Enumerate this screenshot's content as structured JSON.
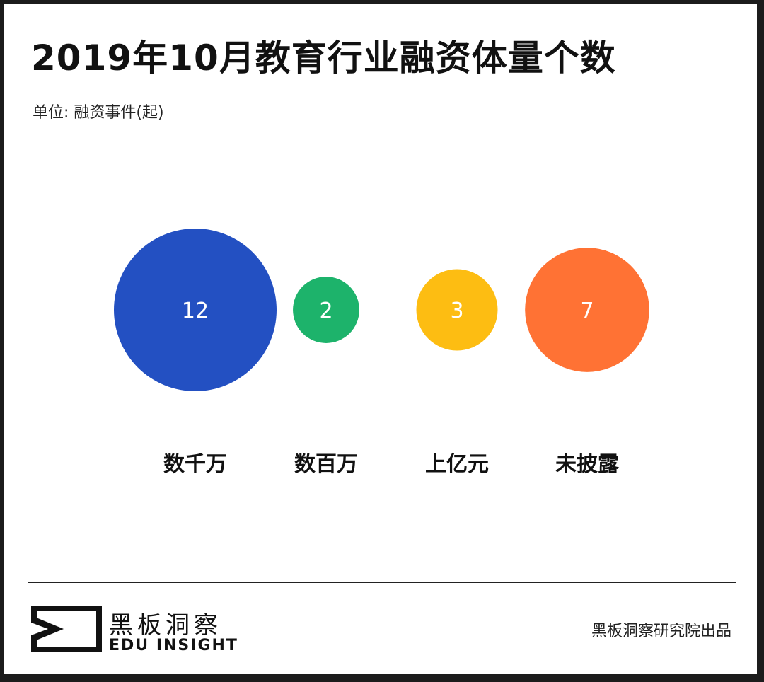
{
  "title": "2019年10月教育行业融资体量个数",
  "unit_label": "单位: 融资事件(起)",
  "chart_data": {
    "type": "bubble",
    "title": "2019年10月教育行业融资体量个数",
    "unit": "单位: 融资事件(起)",
    "categories": [
      "数千万",
      "数百万",
      "上亿元",
      "未披露"
    ],
    "values": [
      12,
      2,
      3,
      7
    ],
    "colors": [
      "#2350c2",
      "#1db36b",
      "#fdbd12",
      "#ff7234"
    ],
    "label_color": "#ffffff"
  },
  "footer": {
    "brand_cn": "黑板洞察",
    "brand_en": "EDU INSIGHT",
    "credit": "黑板洞察研究院出品"
  }
}
